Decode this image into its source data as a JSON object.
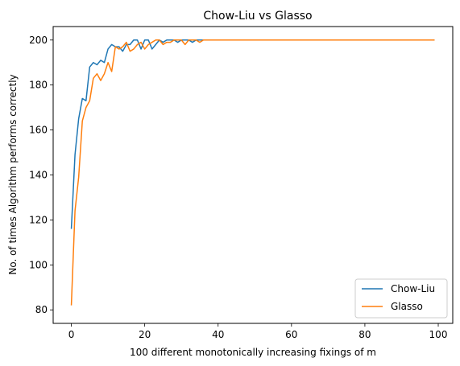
{
  "chart_data": {
    "type": "line",
    "title": "Chow-Liu vs Glasso",
    "xlabel": "100 different monotonically increasing fixings of m",
    "ylabel": "No. of times Algorithm performs correctly",
    "xlim": [
      -4.95,
      103.95
    ],
    "ylim": [
      74,
      206
    ],
    "xticks": [
      0,
      20,
      40,
      60,
      80,
      100
    ],
    "yticks": [
      80,
      100,
      120,
      140,
      160,
      180,
      200
    ],
    "grid": false,
    "legend_position": "lower right",
    "series": [
      {
        "name": "Chow-Liu",
        "color": "#1f77b4",
        "x": [
          0,
          1,
          2,
          3,
          4,
          5,
          6,
          7,
          8,
          9,
          10,
          11,
          12,
          13,
          14,
          15,
          16,
          17,
          18,
          19,
          20,
          21,
          22,
          23,
          24,
          25,
          26,
          27,
          28,
          29,
          30,
          31,
          32,
          33,
          34,
          35,
          36,
          37,
          38,
          39,
          40,
          41,
          42,
          43,
          44,
          45,
          46,
          47,
          48,
          49,
          50,
          51,
          52,
          53,
          54,
          55,
          56,
          57,
          58,
          59,
          60,
          61,
          62,
          63,
          64,
          65,
          66,
          67,
          68,
          69,
          70,
          71,
          72,
          73,
          74,
          75,
          76,
          77,
          78,
          79,
          80,
          81,
          82,
          83,
          84,
          85,
          86,
          87,
          88,
          89,
          90,
          91,
          92,
          93,
          94,
          95,
          96,
          97,
          98,
          99
        ],
        "y": [
          116,
          149,
          165,
          174,
          173,
          188,
          190,
          189,
          191,
          190,
          196,
          198,
          197,
          197,
          195,
          198,
          198,
          200,
          200,
          196,
          200,
          200,
          196,
          198,
          200,
          199,
          200,
          200,
          200,
          199,
          200,
          200,
          200,
          199,
          200,
          200,
          200,
          200,
          200,
          200,
          200,
          200,
          200,
          200,
          200,
          200,
          200,
          200,
          200,
          200,
          200,
          200,
          200,
          200,
          200,
          200,
          200,
          200,
          200,
          200,
          200,
          200,
          200,
          200,
          200,
          200,
          200,
          200,
          200,
          200,
          200,
          200,
          200,
          200,
          200,
          200,
          200,
          200,
          200,
          200,
          200,
          200,
          200,
          200,
          200,
          200,
          200,
          200,
          200,
          200,
          200,
          200,
          200,
          200,
          200,
          200,
          200,
          200,
          200,
          200
        ]
      },
      {
        "name": "Glasso",
        "color": "#ff7f0e",
        "x": [
          0,
          1,
          2,
          3,
          4,
          5,
          6,
          7,
          8,
          9,
          10,
          11,
          12,
          13,
          14,
          15,
          16,
          17,
          18,
          19,
          20,
          21,
          22,
          23,
          24,
          25,
          26,
          27,
          28,
          29,
          30,
          31,
          32,
          33,
          34,
          35,
          36,
          37,
          38,
          39,
          40,
          41,
          42,
          43,
          44,
          45,
          46,
          47,
          48,
          49,
          50,
          51,
          52,
          53,
          54,
          55,
          56,
          57,
          58,
          59,
          60,
          61,
          62,
          63,
          64,
          65,
          66,
          67,
          68,
          69,
          70,
          71,
          72,
          73,
          74,
          75,
          76,
          77,
          78,
          79,
          80,
          81,
          82,
          83,
          84,
          85,
          86,
          87,
          88,
          89,
          90,
          91,
          92,
          93,
          94,
          95,
          96,
          97,
          98,
          99
        ],
        "y": [
          82,
          124,
          139,
          164,
          170,
          173,
          183,
          185,
          182,
          185,
          190,
          186,
          197,
          196,
          197,
          199,
          195,
          196,
          198,
          199,
          196,
          198,
          199,
          200,
          200,
          198,
          199,
          199,
          200,
          200,
          200,
          198,
          200,
          200,
          200,
          199,
          200,
          200,
          200,
          200,
          200,
          200,
          200,
          200,
          200,
          200,
          200,
          200,
          200,
          200,
          200,
          200,
          200,
          200,
          200,
          200,
          200,
          200,
          200,
          200,
          200,
          200,
          200,
          200,
          200,
          200,
          200,
          200,
          200,
          200,
          200,
          200,
          200,
          200,
          200,
          200,
          200,
          200,
          200,
          200,
          200,
          200,
          200,
          200,
          200,
          200,
          200,
          200,
          200,
          200,
          200,
          200,
          200,
          200,
          200,
          200,
          200,
          200,
          200,
          200
        ]
      }
    ]
  }
}
